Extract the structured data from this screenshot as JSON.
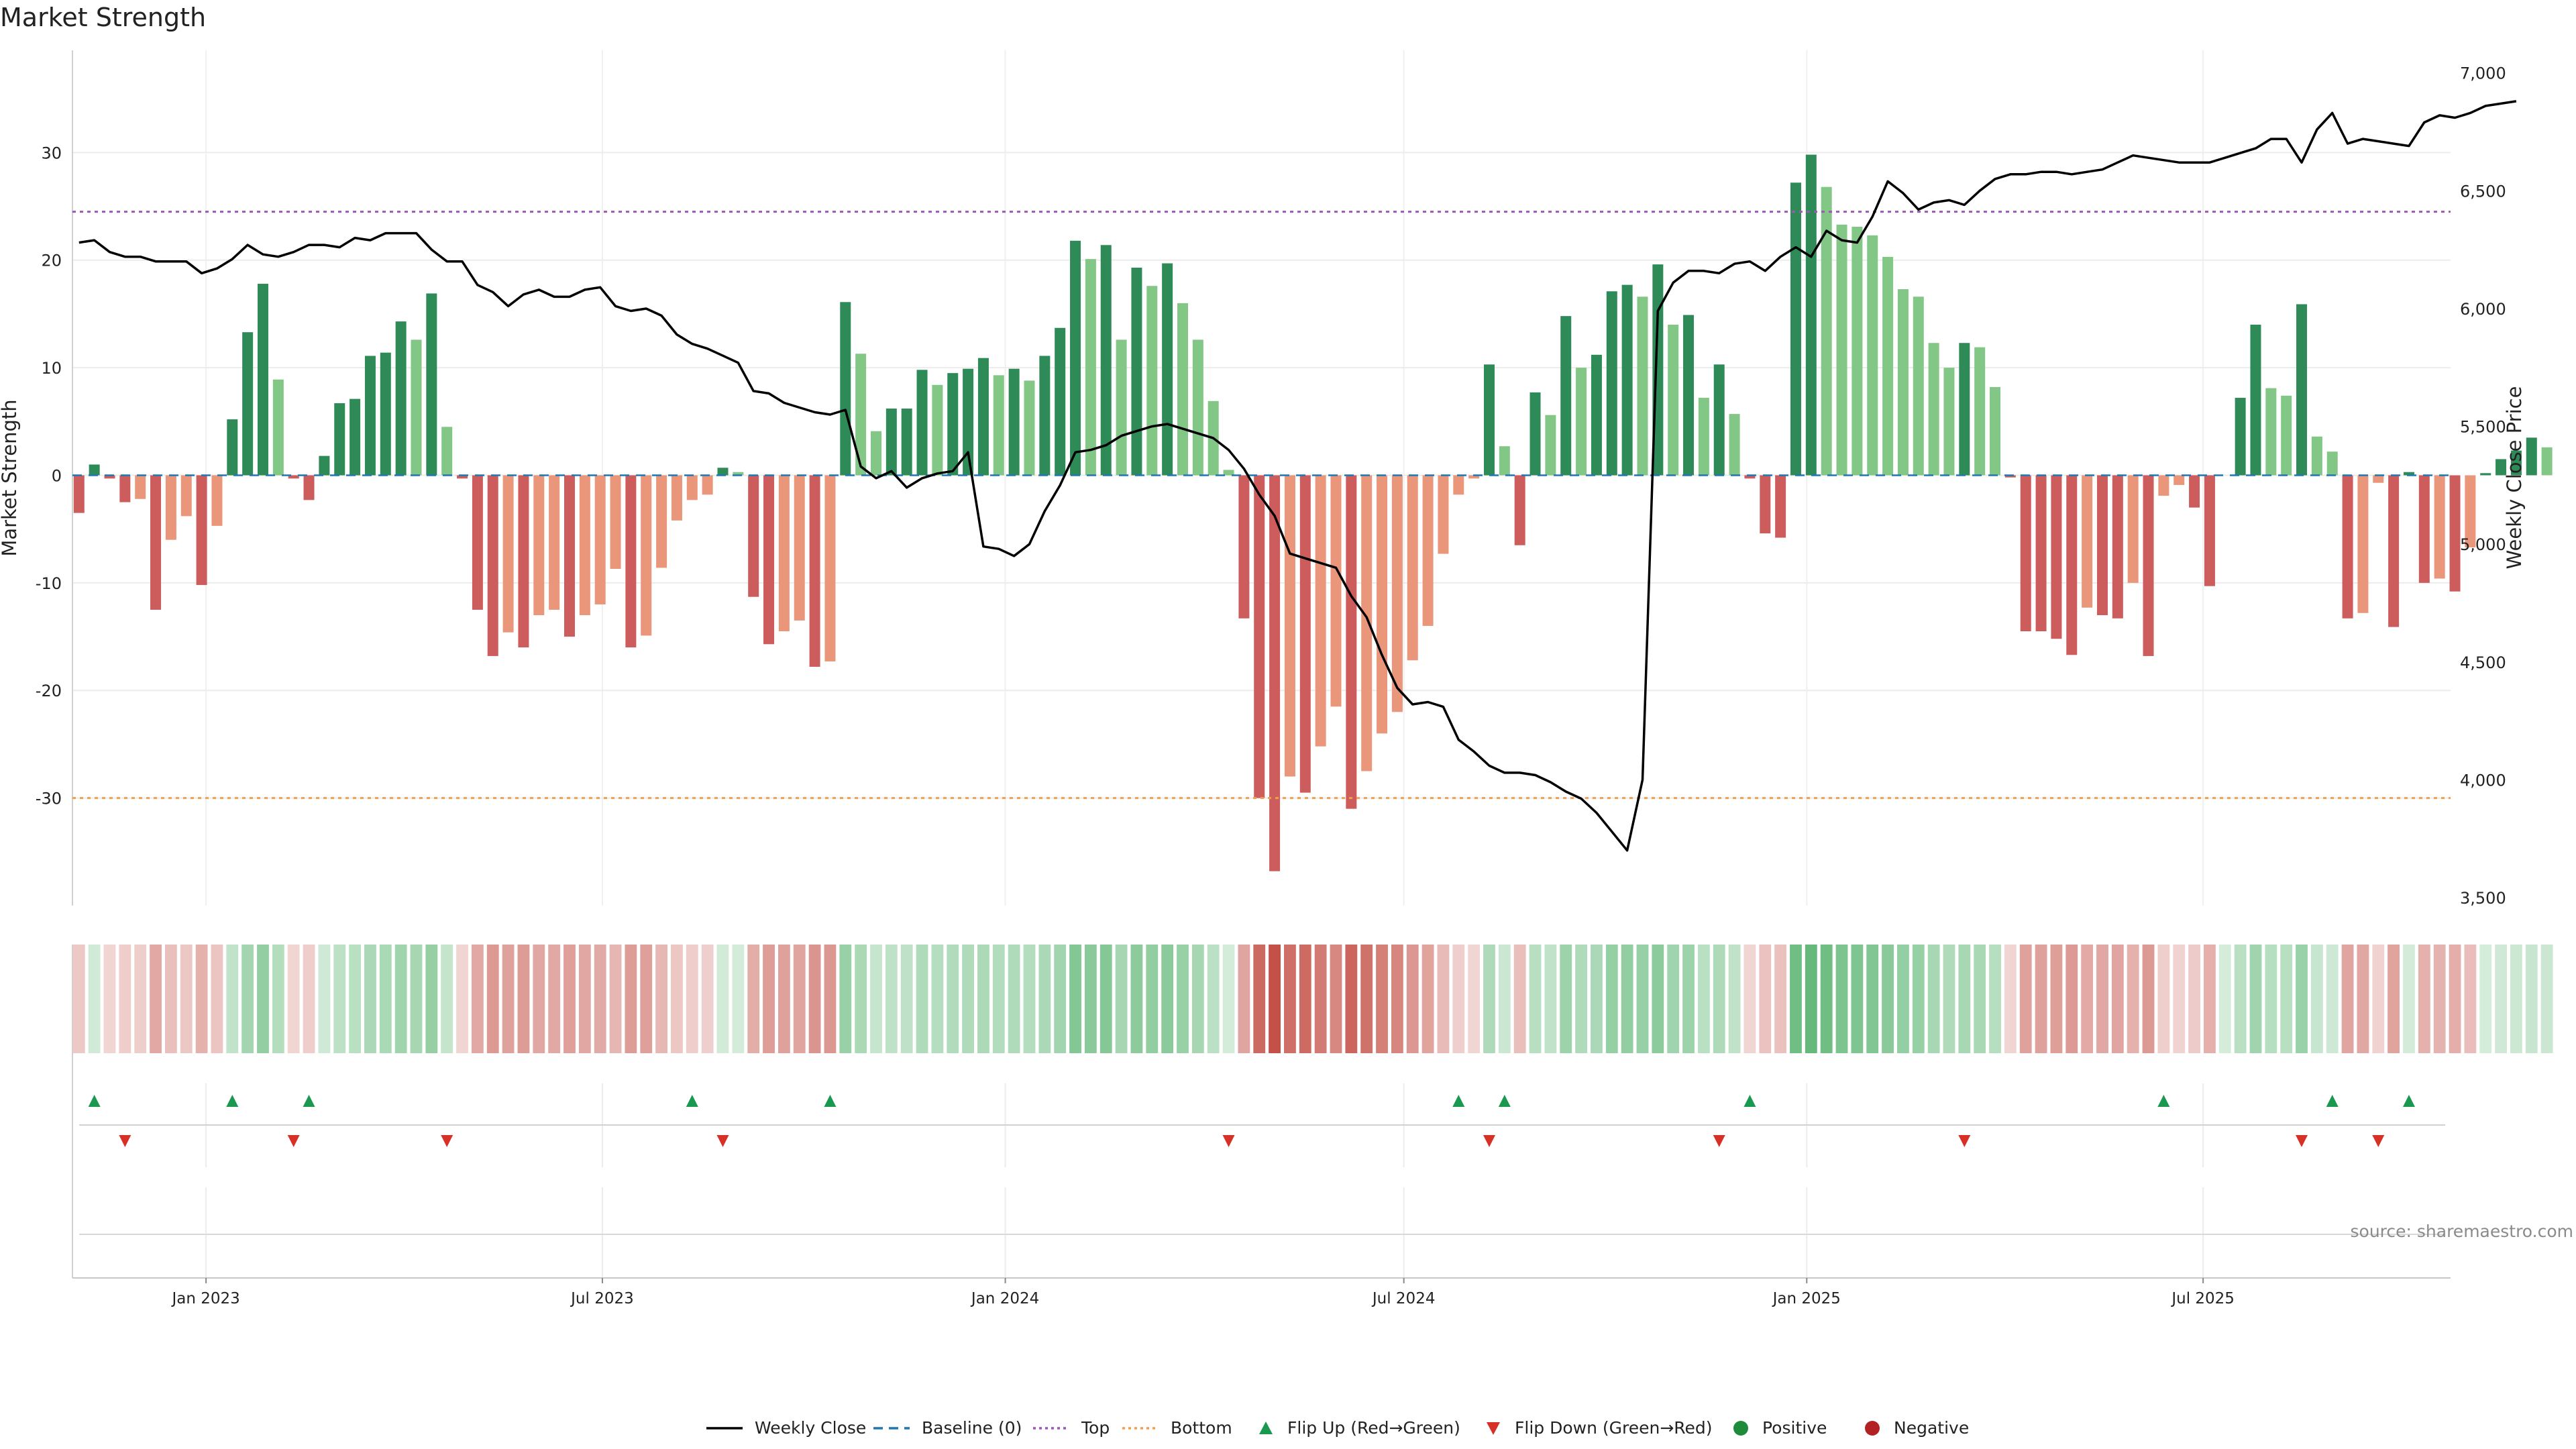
{
  "chart_data": {
    "type": "bar",
    "title": "Market Strength",
    "ylabel": "Market Strength",
    "y2label": "Weekly Close Price",
    "ylim": [
      -40.0,
      39.5
    ],
    "y2lim": [
      3466,
      7096
    ],
    "yticks": [
      -30,
      -20,
      -10,
      0,
      10,
      20,
      30
    ],
    "y2ticks": [
      3500,
      4000,
      4500,
      5000,
      5500,
      6000,
      6500,
      7000
    ],
    "y2tick_labels": [
      "3,500",
      "4,000",
      "4,500",
      "5,000",
      "5,500",
      "6,000",
      "6,500",
      "7,000"
    ],
    "top_line": 24.5,
    "bottom_line": -30.0,
    "start_date": "2022-11-04",
    "week_days": 7,
    "date_range": [
      "2022-11-01",
      "2025-10-22"
    ],
    "xticks": [
      {
        "date": "2023-01-01",
        "label": "Jan 2023"
      },
      {
        "date": "2023-07-01",
        "label": "Jul 2023"
      },
      {
        "date": "2024-01-01",
        "label": "Jan 2024"
      },
      {
        "date": "2024-07-01",
        "label": "Jul 2024"
      },
      {
        "date": "2025-01-01",
        "label": "Jan 2025"
      },
      {
        "date": "2025-07-01",
        "label": "Jul 2025"
      }
    ],
    "strength": [
      -3.5,
      1.0,
      -0.3,
      -2.5,
      -2.2,
      -12.5,
      -6.0,
      -3.8,
      -10.2,
      -4.7,
      5.2,
      13.3,
      17.8,
      8.9,
      -0.3,
      -2.3,
      1.8,
      6.7,
      7.1,
      11.1,
      11.4,
      14.3,
      12.6,
      16.9,
      4.5,
      -0.3,
      -12.5,
      -16.8,
      -14.6,
      -16.0,
      -13.0,
      -12.5,
      -15.0,
      -13.0,
      -12.0,
      -8.7,
      -16.0,
      -14.9,
      -8.6,
      -4.2,
      -2.3,
      -1.8,
      0.7,
      0.3,
      -11.3,
      -15.7,
      -14.5,
      -13.5,
      -17.8,
      -17.3,
      16.1,
      11.3,
      4.1,
      6.2,
      6.2,
      9.8,
      8.4,
      9.5,
      9.9,
      10.9,
      9.3,
      9.9,
      8.8,
      11.1,
      13.7,
      21.8,
      20.1,
      21.4,
      12.6,
      19.3,
      17.6,
      19.7,
      16.0,
      12.6,
      6.9,
      0.5,
      -13.3,
      -30.0,
      -36.8,
      -28.0,
      -29.5,
      -25.2,
      -21.5,
      -31.0,
      -27.5,
      -24.0,
      -22.0,
      -17.2,
      -14.0,
      -7.3,
      -1.8,
      -0.3,
      10.3,
      2.7,
      -6.5,
      7.7,
      5.6,
      14.8,
      10.0,
      11.2,
      17.1,
      17.7,
      16.6,
      19.6,
      14.0,
      14.9,
      7.2,
      10.3,
      5.7,
      -0.3,
      -5.4,
      -5.8,
      27.2,
      29.8,
      26.8,
      23.3,
      23.1,
      22.3,
      20.3,
      17.3,
      16.6,
      12.3,
      10.0,
      12.3,
      11.9,
      8.2,
      -0.2,
      -14.5,
      -14.5,
      -15.2,
      -16.7,
      -12.3,
      -13.0,
      -13.3,
      -10.0,
      -16.8,
      -1.9,
      -0.9,
      -3.0,
      -10.3,
      0.0,
      7.2,
      14.0,
      8.1,
      7.4,
      15.9,
      3.6,
      2.2,
      -13.3,
      -12.8,
      -0.7,
      -14.1,
      0.3,
      -10.0,
      -9.6,
      -10.8,
      -6.7,
      0.2,
      1.5,
      2.3,
      3.5,
      2.6
    ],
    "flip_up": [
      1,
      10,
      15,
      40,
      49,
      90,
      93,
      109,
      136,
      147,
      152
    ],
    "flip_down": [
      3,
      14,
      24,
      42,
      75,
      92,
      107,
      123,
      145,
      150
    ],
    "close": [
      6280,
      6290,
      6240,
      6220,
      6220,
      6200,
      6200,
      6200,
      6150,
      6170,
      6210,
      6270,
      6230,
      6220,
      6240,
      6270,
      6270,
      6260,
      6300,
      6290,
      6320,
      6320,
      6320,
      6250,
      6200,
      6200,
      6100,
      6070,
      6010,
      6060,
      6080,
      6050,
      6050,
      6080,
      6090,
      6010,
      5990,
      6000,
      5970,
      5890,
      5850,
      5830,
      5800,
      5770,
      5650,
      5640,
      5600,
      5580,
      5560,
      5550,
      5570,
      5330,
      5280,
      5310,
      5240,
      5280,
      5300,
      5310,
      5390,
      4990,
      4980,
      4950,
      5000,
      5140,
      5250,
      5390,
      5400,
      5420,
      5460,
      5480,
      5500,
      5510,
      5490,
      5470,
      5450,
      5400,
      5320,
      5210,
      5120,
      4960,
      4940,
      4920,
      4900,
      4780,
      4690,
      4530,
      4390,
      4320,
      4330,
      4310,
      4170,
      4120,
      4060,
      4030,
      4030,
      4020,
      3990,
      3950,
      3920,
      3860,
      3780,
      3700,
      4000,
      5990,
      6110,
      6160,
      6160,
      6150,
      6190,
      6200,
      6160,
      6220,
      6260,
      6220,
      6330,
      6290,
      6280,
      6390,
      6540,
      6490,
      6420,
      6450,
      6460,
      6440,
      6500,
      6550,
      6570,
      6570,
      6580,
      6580,
      6570,
      6580,
      6590,
      6620,
      6650,
      6640,
      6630,
      6620,
      6620,
      6620,
      6640,
      6660,
      6680,
      6720,
      6720,
      6620,
      6760,
      6830,
      6700,
      6720,
      6710,
      6700,
      6690,
      6790,
      6820,
      6810,
      6830,
      6860,
      6870,
      6880
    ],
    "legend": [
      "Weekly Close",
      "Baseline (0)",
      "Top",
      "Bottom",
      "Flip Up (Red→Green)",
      "Flip Down (Green→Red)",
      "Positive",
      "Negative"
    ],
    "source": "source: sharemaestro.com"
  },
  "colors": {
    "pos_dark": "#2e8b57",
    "pos_light": "#82c785",
    "neg_dark": "#cd5c5c",
    "neg_light": "#e9967a",
    "line": "#000000",
    "top_line": "#9b59b6",
    "bottom_line": "#f0a050",
    "baseline": "#1f77b4",
    "flip_up": "#1a9850",
    "flip_down": "#d73027",
    "positive": "#1e8b3a",
    "negative": "#b22222"
  }
}
